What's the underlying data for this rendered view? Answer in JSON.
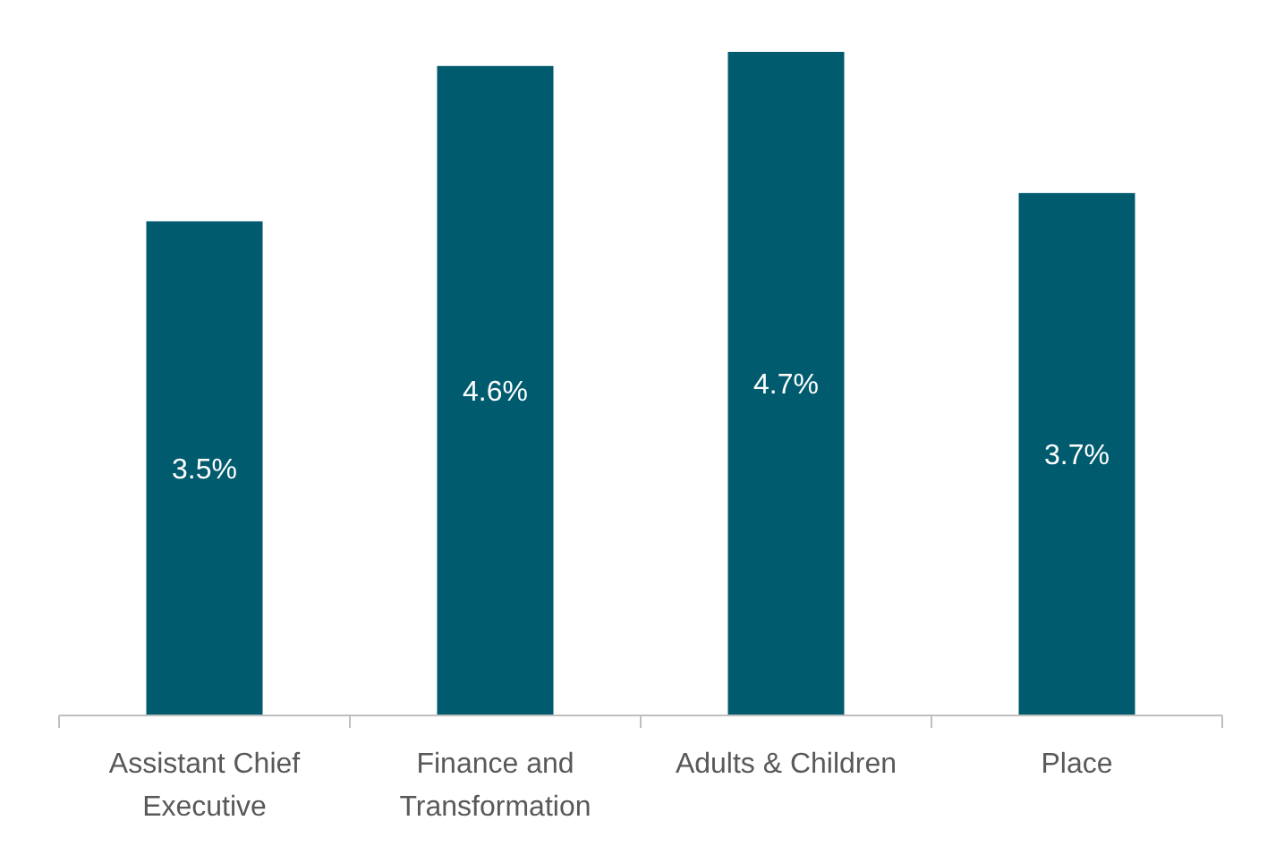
{
  "chart_data": {
    "type": "bar",
    "categories": [
      "Assistant Chief Executive",
      "Finance and Transformation",
      "Adults & Children",
      "Place"
    ],
    "values": [
      3.5,
      4.6,
      4.7,
      3.7
    ],
    "value_labels": [
      "3.5%",
      "4.6%",
      "4.7%",
      "3.7%"
    ],
    "color": "#005b6e"
  }
}
